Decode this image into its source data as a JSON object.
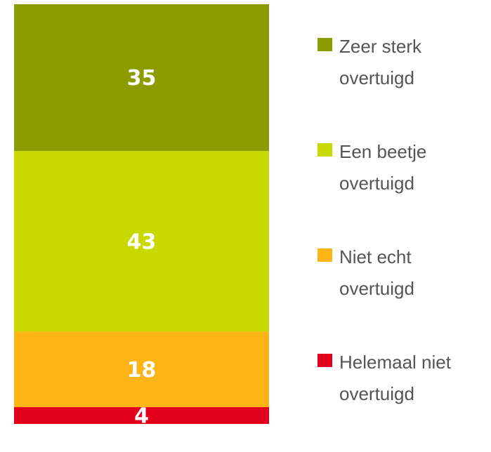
{
  "chart_data": {
    "type": "bar",
    "stacked": true,
    "series": [
      {
        "name": "Zeer sterk overtuigd",
        "color": "#8c9b00",
        "values": [
          35
        ]
      },
      {
        "name": "Een beetje overtuigd",
        "color": "#c8d900",
        "values": [
          43
        ]
      },
      {
        "name": "Niet echt overtuigd",
        "color": "#fdb515",
        "values": [
          18
        ]
      },
      {
        "name": "Helemaal niet overtuigd",
        "color": "#e2001a",
        "values": [
          4
        ]
      }
    ],
    "ylim": [
      0,
      100
    ]
  }
}
